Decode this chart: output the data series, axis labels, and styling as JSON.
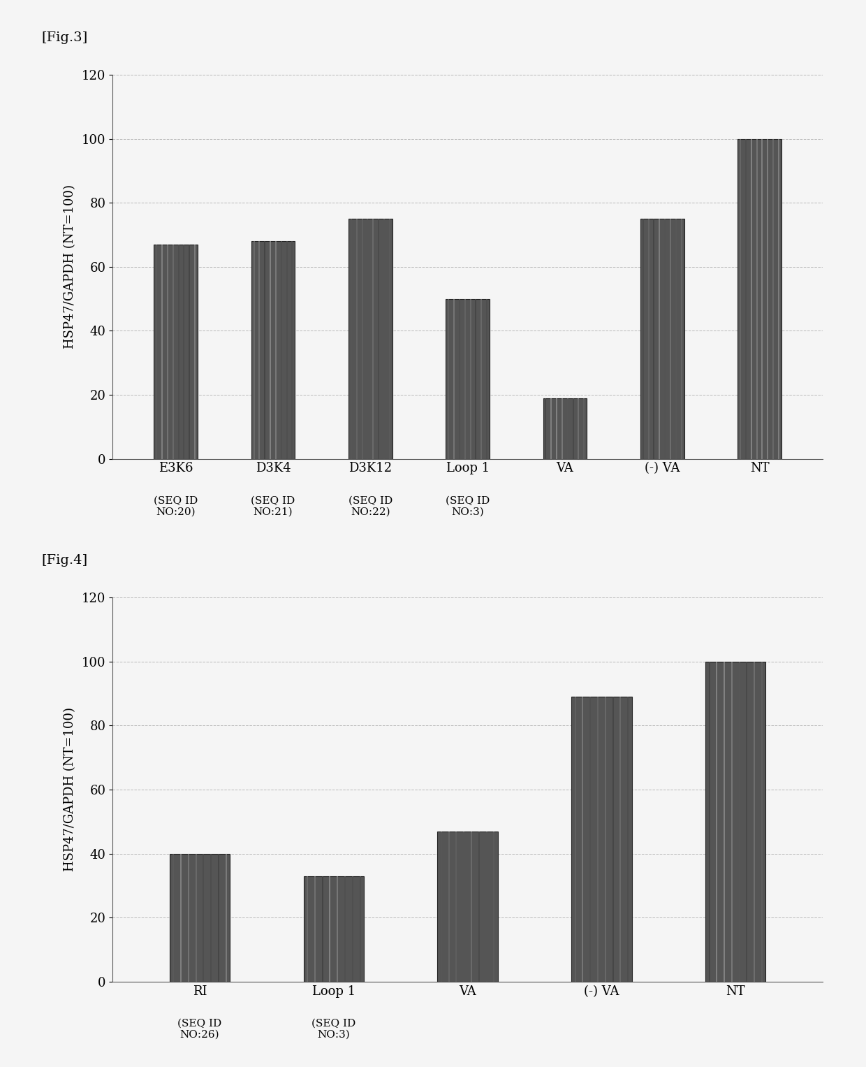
{
  "fig3": {
    "title": "[Fig.3]",
    "main_labels": [
      "E3K6",
      "D3K4",
      "D3K12",
      "Loop 1",
      "VA",
      "(-) VA",
      "NT"
    ],
    "sub_labels": [
      "(SEQ ID\nNO:20)",
      "(SEQ ID\nNO:21)",
      "(SEQ ID\nNO:22)",
      "(SEQ ID\nNO:3)",
      "",
      "",
      ""
    ],
    "values": [
      67,
      68,
      75,
      50,
      19,
      75,
      100
    ],
    "ylabel": "HSP47/GAPDH (NT=100)",
    "ylim": [
      0,
      120
    ],
    "yticks": [
      0,
      20,
      40,
      60,
      80,
      100,
      120
    ]
  },
  "fig4": {
    "title": "[Fig.4]",
    "main_labels": [
      "RI",
      "Loop 1",
      "VA",
      "(-) VA",
      "NT"
    ],
    "sub_labels": [
      "(SEQ ID\nNO:26)",
      "(SEQ ID\nNO:3)",
      "",
      "",
      ""
    ],
    "values": [
      40,
      33,
      47,
      89,
      100
    ],
    "ylabel": "HSP47/GAPDH (NT=100)",
    "ylim": [
      0,
      120
    ],
    "yticks": [
      0,
      20,
      40,
      60,
      80,
      100,
      120
    ]
  },
  "bar_color": "#555555",
  "bar_edge_color": "#333333",
  "background_color": "#f5f5f5",
  "grid_color": "#aaaaaa",
  "fig_label_fontsize": 14,
  "axis_label_fontsize": 13,
  "tick_fontsize": 13,
  "sub_label_fontsize": 11
}
